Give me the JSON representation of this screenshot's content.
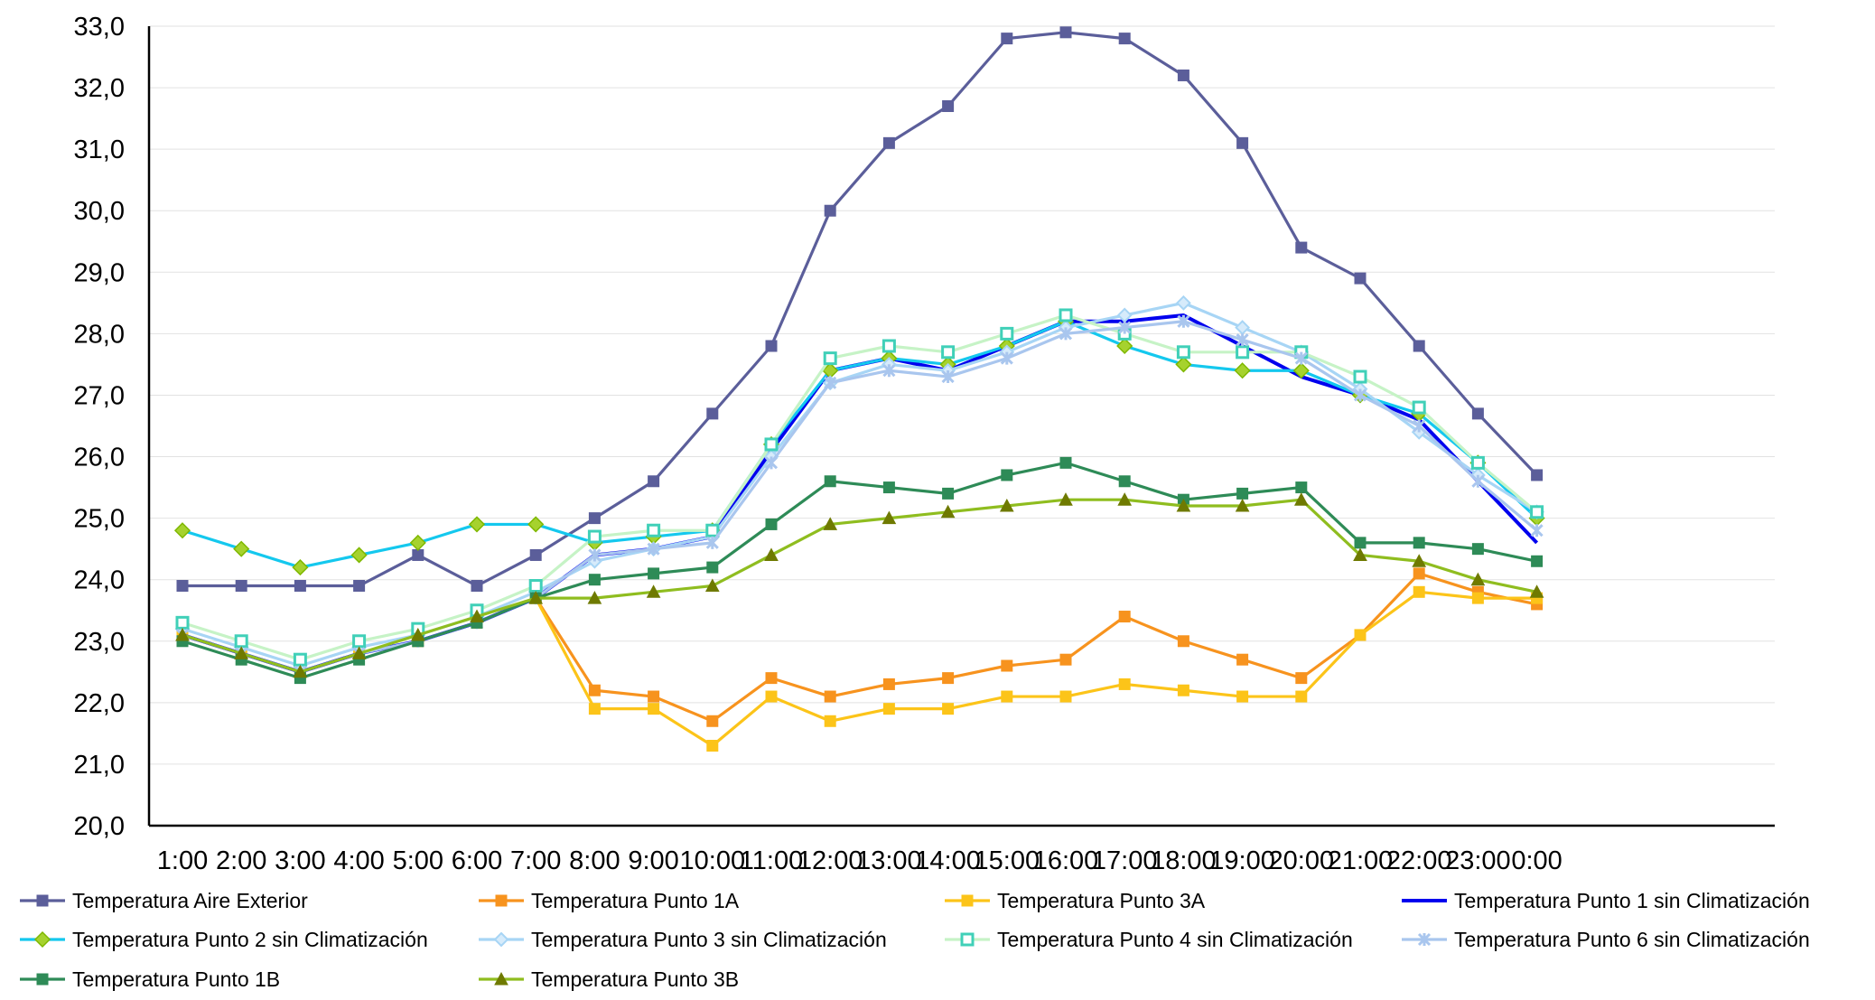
{
  "chart_data": {
    "type": "line",
    "title": "",
    "xlabel": "",
    "ylabel": "",
    "ylim": [
      20,
      33
    ],
    "y_tick_labels": [
      "20,0",
      "21,0",
      "22,0",
      "23,0",
      "24,0",
      "25,0",
      "26,0",
      "27,0",
      "28,0",
      "29,0",
      "30,0",
      "31,0",
      "32,0",
      "33,0"
    ],
    "categories": [
      "1:00",
      "2:00",
      "3:00",
      "4:00",
      "5:00",
      "6:00",
      "7:00",
      "8:00",
      "9:00",
      "10:00",
      "11:00",
      "12:00",
      "13:00",
      "14:00",
      "15:00",
      "16:00",
      "17:00",
      "18:00",
      "19:00",
      "20:00",
      "21:00",
      "22:00",
      "23:00",
      "0:00"
    ],
    "grid": true,
    "legend_position": "bottom",
    "series": [
      {
        "name": "Temperatura Aire Exterior",
        "color": "#5b5e9a",
        "marker": "square",
        "values": [
          23.9,
          23.9,
          23.9,
          23.9,
          24.4,
          23.9,
          24.4,
          25.0,
          25.6,
          26.7,
          27.8,
          30.0,
          31.1,
          31.7,
          32.8,
          32.9,
          32.8,
          32.2,
          31.1,
          29.4,
          28.9,
          27.8,
          26.7,
          25.7
        ]
      },
      {
        "name": "Temperatura Punto 1A",
        "color": "#f7931e",
        "marker": "square",
        "values": [
          23.1,
          22.8,
          22.5,
          22.8,
          23.0,
          23.3,
          23.7,
          22.2,
          22.1,
          21.7,
          22.4,
          22.1,
          22.3,
          22.4,
          22.6,
          22.7,
          23.4,
          23.0,
          22.7,
          22.4,
          23.1,
          24.1,
          23.8,
          23.6
        ]
      },
      {
        "name": "Temperatura Punto 3A",
        "color": "#fcc419",
        "marker": "square",
        "values": [
          23.1,
          22.8,
          22.5,
          22.8,
          23.0,
          23.3,
          23.7,
          21.9,
          21.9,
          21.3,
          22.1,
          21.7,
          21.9,
          21.9,
          22.1,
          22.1,
          22.3,
          22.2,
          22.1,
          22.1,
          23.1,
          23.8,
          23.7,
          23.7
        ]
      },
      {
        "name": "Temperatura Punto 1 sin Climatización",
        "color": "#0000ee",
        "marker": "none",
        "values": [
          23.1,
          22.8,
          22.5,
          22.8,
          23.0,
          23.3,
          23.7,
          24.4,
          24.5,
          24.7,
          26.1,
          27.4,
          27.6,
          27.4,
          27.8,
          28.2,
          28.2,
          28.3,
          27.8,
          27.3,
          27.0,
          26.6,
          25.6,
          24.6
        ]
      },
      {
        "name": "Temperatura Punto 2 sin Climatización",
        "color": "#14c8ee",
        "marker": "diamond",
        "values": [
          24.8,
          24.5,
          24.2,
          24.4,
          24.6,
          24.9,
          24.9,
          24.6,
          24.7,
          24.8,
          26.2,
          27.4,
          27.6,
          27.5,
          27.8,
          28.2,
          27.8,
          27.5,
          27.4,
          27.4,
          27.0,
          26.7,
          25.9,
          25.0
        ]
      },
      {
        "name": "Temperatura Punto 3 sin Climatización",
        "color": "#a7d5f5",
        "marker": "diamond-open",
        "values": [
          23.2,
          22.9,
          22.6,
          22.9,
          23.1,
          23.4,
          23.8,
          24.3,
          24.5,
          24.7,
          26.0,
          27.2,
          27.5,
          27.4,
          27.7,
          28.1,
          28.3,
          28.5,
          28.1,
          27.7,
          27.1,
          26.4,
          25.7,
          25.1
        ]
      },
      {
        "name": "Temperatura Punto 4 sin Climatización",
        "color": "#40d0b8",
        "line_color": "#c6f3c6",
        "marker": "square-open",
        "values": [
          23.3,
          23.0,
          22.7,
          23.0,
          23.2,
          23.5,
          23.9,
          24.7,
          24.8,
          24.8,
          26.2,
          27.6,
          27.8,
          27.7,
          28.0,
          28.3,
          28.0,
          27.7,
          27.7,
          27.7,
          27.3,
          26.8,
          25.9,
          25.1
        ]
      },
      {
        "name": "Temperatura Punto 6 sin Climatización",
        "color": "#a9c6ee",
        "marker": "asterisk",
        "values": [
          23.1,
          22.8,
          22.5,
          22.8,
          23.0,
          23.3,
          23.7,
          24.4,
          24.5,
          24.6,
          25.9,
          27.2,
          27.4,
          27.3,
          27.6,
          28.0,
          28.1,
          28.2,
          27.9,
          27.6,
          27.0,
          26.5,
          25.6,
          24.8
        ]
      },
      {
        "name": "Temperatura Punto 1B",
        "color": "#2e8b57",
        "marker": "square",
        "values": [
          23.0,
          22.7,
          22.4,
          22.7,
          23.0,
          23.3,
          23.7,
          24.0,
          24.1,
          24.2,
          24.9,
          25.6,
          25.5,
          25.4,
          25.7,
          25.9,
          25.6,
          25.3,
          25.4,
          25.5,
          24.6,
          24.6,
          24.5,
          24.3
        ]
      },
      {
        "name": "Temperatura Punto 3B",
        "color": "#8fbd1f",
        "marker": "triangle",
        "marker_color": "#6f7a00",
        "values": [
          23.1,
          22.8,
          22.5,
          22.8,
          23.1,
          23.4,
          23.7,
          23.7,
          23.8,
          23.9,
          24.4,
          24.9,
          25.0,
          25.1,
          25.2,
          25.3,
          25.3,
          25.2,
          25.2,
          25.3,
          24.4,
          24.3,
          24.0,
          23.8
        ]
      }
    ]
  }
}
